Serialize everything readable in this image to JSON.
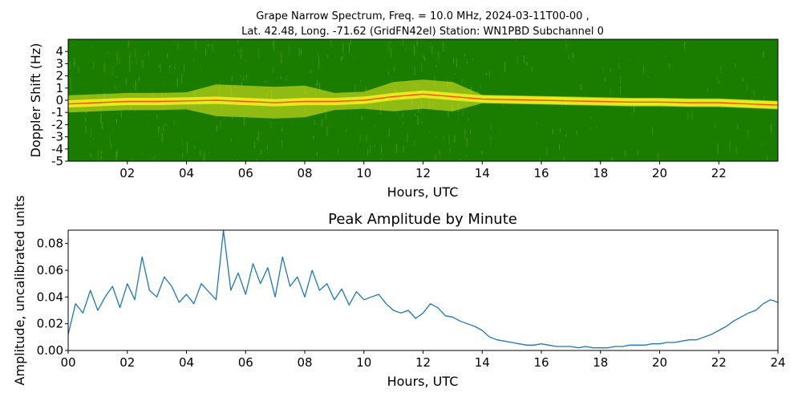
{
  "chart_data": [
    {
      "type": "heatmap",
      "title_line1": "Grape Narrow Spectrum, Freq. = 10.0 MHz, 2024-03-11T00-00 ,",
      "title_line2": "Lat.  42.48, Long. -71.62 (GridFN42el) Station: WN1PBD Subchannel 0",
      "xlabel": "Hours, UTC",
      "ylabel": "Doppler Shift (Hz)",
      "xlim": [
        0,
        24
      ],
      "ylim": [
        -5,
        5
      ],
      "x_ticks": [
        "02",
        "04",
        "06",
        "08",
        "10",
        "12",
        "14",
        "16",
        "18",
        "20",
        "22"
      ],
      "x_tick_values": [
        2,
        4,
        6,
        8,
        10,
        12,
        14,
        16,
        18,
        20,
        22
      ],
      "y_ticks": [
        "4",
        "3",
        "2",
        "1",
        "0",
        "-1",
        "-2",
        "-3",
        "-4",
        "-5"
      ],
      "y_tick_values": [
        4,
        3,
        2,
        1,
        0,
        -1,
        -2,
        -3,
        -4,
        -5
      ],
      "colors": {
        "background": "#1a7d00",
        "noise": "#5da800",
        "signal": "#f2ee22",
        "peak": "#ff2a00"
      },
      "trace": {
        "hours": [
          0,
          1,
          2,
          3,
          4,
          5,
          6,
          7,
          8,
          9,
          10,
          11,
          12,
          13,
          14,
          15,
          16,
          17,
          18,
          19,
          20,
          21,
          22,
          23,
          24
        ],
        "shift_hz": [
          -0.3,
          -0.2,
          -0.1,
          -0.1,
          -0.05,
          0,
          -0.1,
          -0.2,
          -0.1,
          -0.1,
          0,
          0.3,
          0.5,
          0.3,
          0.1,
          0.05,
          0,
          -0.05,
          -0.1,
          -0.15,
          -0.15,
          -0.2,
          -0.2,
          -0.3,
          -0.4
        ]
      }
    },
    {
      "type": "line",
      "title": "Peak Amplitude by Minute",
      "xlabel": "Hours, UTC",
      "ylabel": "Amplitude, uncalibrated units",
      "xlim": [
        0,
        24
      ],
      "ylim": [
        0,
        0.09
      ],
      "x_ticks": [
        "00",
        "02",
        "04",
        "06",
        "08",
        "10",
        "12",
        "14",
        "16",
        "18",
        "20",
        "22",
        "24"
      ],
      "x_tick_values": [
        0,
        2,
        4,
        6,
        8,
        10,
        12,
        14,
        16,
        18,
        20,
        22,
        24
      ],
      "y_ticks": [
        "0.00",
        "0.02",
        "0.04",
        "0.06",
        "0.08"
      ],
      "y_tick_values": [
        0,
        0.02,
        0.04,
        0.06,
        0.08
      ],
      "line_color": "#1f77b4",
      "x": [
        0,
        0.25,
        0.5,
        0.75,
        1,
        1.25,
        1.5,
        1.75,
        2,
        2.25,
        2.5,
        2.75,
        3,
        3.25,
        3.5,
        3.75,
        4,
        4.25,
        4.5,
        4.75,
        5,
        5.25,
        5.5,
        5.75,
        6,
        6.25,
        6.5,
        6.75,
        7,
        7.25,
        7.5,
        7.75,
        8,
        8.25,
        8.5,
        8.75,
        9,
        9.25,
        9.5,
        9.75,
        10,
        10.25,
        10.5,
        10.75,
        11,
        11.25,
        11.5,
        11.75,
        12,
        12.25,
        12.5,
        12.75,
        13,
        13.25,
        13.5,
        13.75,
        14,
        14.25,
        14.5,
        14.75,
        15,
        15.25,
        15.5,
        15.75,
        16,
        16.25,
        16.5,
        16.75,
        17,
        17.25,
        17.5,
        17.75,
        18,
        18.25,
        18.5,
        18.75,
        19,
        19.25,
        19.5,
        19.75,
        20,
        20.25,
        20.5,
        20.75,
        21,
        21.25,
        21.5,
        21.75,
        22,
        22.25,
        22.5,
        22.75,
        23,
        23.25,
        23.5,
        23.75,
        24
      ],
      "y": [
        0.012,
        0.035,
        0.028,
        0.045,
        0.03,
        0.04,
        0.048,
        0.032,
        0.05,
        0.038,
        0.07,
        0.045,
        0.04,
        0.055,
        0.048,
        0.036,
        0.042,
        0.035,
        0.05,
        0.044,
        0.038,
        0.09,
        0.045,
        0.058,
        0.042,
        0.065,
        0.05,
        0.062,
        0.04,
        0.07,
        0.048,
        0.055,
        0.04,
        0.06,
        0.045,
        0.05,
        0.038,
        0.046,
        0.034,
        0.044,
        0.038,
        0.04,
        0.042,
        0.035,
        0.03,
        0.028,
        0.03,
        0.024,
        0.028,
        0.035,
        0.032,
        0.026,
        0.025,
        0.022,
        0.02,
        0.018,
        0.015,
        0.01,
        0.008,
        0.007,
        0.006,
        0.005,
        0.004,
        0.004,
        0.005,
        0.004,
        0.003,
        0.003,
        0.003,
        0.002,
        0.003,
        0.002,
        0.002,
        0.002,
        0.003,
        0.003,
        0.004,
        0.004,
        0.004,
        0.005,
        0.005,
        0.006,
        0.006,
        0.007,
        0.008,
        0.008,
        0.01,
        0.012,
        0.015,
        0.018,
        0.022,
        0.025,
        0.028,
        0.03,
        0.035,
        0.038,
        0.036
      ]
    }
  ]
}
